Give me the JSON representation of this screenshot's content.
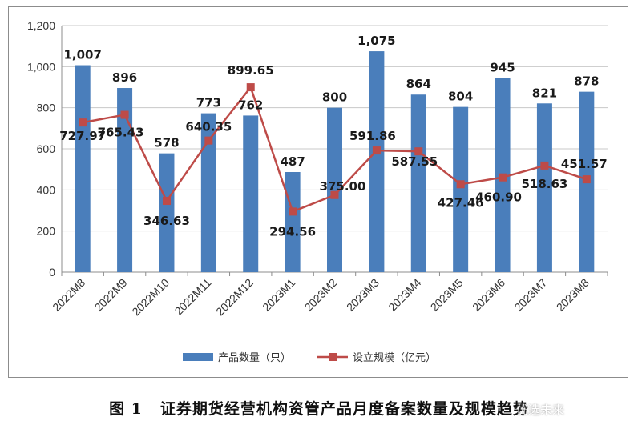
{
  "chart_data": {
    "type": "bar",
    "categories": [
      "2022M8",
      "2022M9",
      "2022M10",
      "2022M11",
      "2022M12",
      "2023M1",
      "2023M2",
      "2023M3",
      "2023M4",
      "2023M5",
      "2023M6",
      "2023M7",
      "2023M8"
    ],
    "series": [
      {
        "name": "产品数量（只）",
        "type": "bar",
        "color": "#4a7ebb",
        "values": [
          1007,
          896,
          578,
          773,
          762,
          487,
          800,
          1075,
          864,
          804,
          945,
          821,
          878
        ],
        "labels": [
          "1,007",
          "896",
          "578",
          "773",
          "762",
          "487",
          "800",
          "1,075",
          "864",
          "804",
          "945",
          "821",
          "878"
        ]
      },
      {
        "name": "设立规模（亿元）",
        "type": "line",
        "color": "#be4b48",
        "values": [
          727.97,
          765.43,
          346.63,
          640.35,
          899.65,
          294.56,
          375.0,
          591.86,
          587.55,
          427.46,
          460.9,
          518.63,
          451.57
        ],
        "labels": [
          "727.97",
          "765.43",
          "346.63",
          "640.35",
          "899.65",
          "294.56",
          "375.00",
          "591.86",
          "587.55",
          "427.46",
          "460.90",
          "518.63",
          "451.57"
        ]
      }
    ],
    "ylim": [
      0,
      1200
    ],
    "yticks": [
      0,
      200,
      400,
      600,
      800,
      1000,
      1200
    ],
    "ytick_labels": [
      "0",
      "200",
      "400",
      "600",
      "800",
      "1,000",
      "1,200"
    ],
    "xlabel": "",
    "ylabel": "",
    "grid": true,
    "legend_position": "bottom"
  },
  "caption": {
    "figure_number": "图 1",
    "title": "证券期货经营机构资管产品月度备案数量及规模趋势"
  },
  "watermark": "优选未来"
}
